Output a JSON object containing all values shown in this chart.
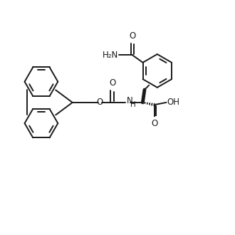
{
  "background_color": "#ffffff",
  "line_color": "#1a1a1a",
  "line_width": 1.4,
  "font_size": 8.5,
  "figsize": [
    3.3,
    3.3
  ],
  "dpi": 100,
  "xlim": [
    0,
    10
  ],
  "ylim": [
    0,
    10
  ]
}
